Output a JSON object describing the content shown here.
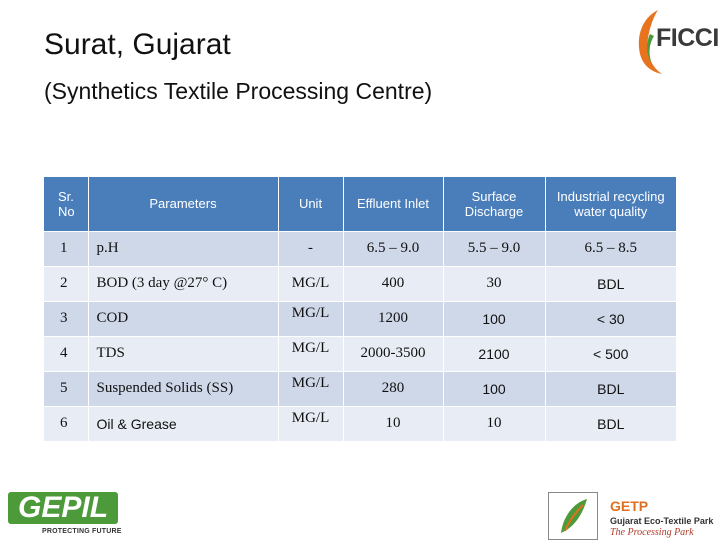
{
  "header": {
    "title": "Surat, Gujarat",
    "subtitle": "(Synthetics Textile Processing Centre)"
  },
  "logos": {
    "ficci": "FICCI",
    "gepil": {
      "name": "GEPIL",
      "tagline": "PROTECTING FUTURE"
    },
    "getp": {
      "name": "GETP",
      "full": "Gujarat Eco-Textile Park",
      "tagline": "The Processing Park"
    }
  },
  "table": {
    "headers": {
      "sr": "Sr. No",
      "parameters": "Parameters",
      "unit": "Unit",
      "effluent": "Effluent Inlet",
      "surface": "Surface Discharge",
      "industrial": "Industrial recycling water quality"
    },
    "rows": [
      {
        "sr": "1",
        "parameter": "p.H",
        "unit": "-",
        "effluent": "6.5 – 9.0",
        "surface": "5.5 – 9.0",
        "industrial": "6.5 – 8.5"
      },
      {
        "sr": "2",
        "parameter": "BOD (3 day @27° C)",
        "unit": "MG/L",
        "effluent": "400",
        "surface": "30",
        "industrial": "BDL"
      },
      {
        "sr": "3",
        "parameter": "COD",
        "unit": "MG/L",
        "effluent": "1200",
        "surface": "100",
        "industrial": "< 30"
      },
      {
        "sr": "4",
        "parameter": "TDS",
        "unit": "MG/L",
        "effluent": "2000-3500",
        "surface": "2100",
        "industrial": "< 500"
      },
      {
        "sr": "5",
        "parameter": "Suspended Solids (SS)",
        "unit": "MG/L",
        "effluent": "280",
        "surface": "100",
        "industrial": "BDL"
      },
      {
        "sr": "6",
        "parameter": "Oil & Grease",
        "unit": "MG/L",
        "effluent": "10",
        "surface": "10",
        "industrial": "BDL"
      }
    ]
  },
  "colors": {
    "header_bg": "#4a7ebb",
    "row_dark": "#cfd8e9",
    "row_light": "#e8edf5",
    "ficci_orange": "#e8731e",
    "gepil_green": "#4c9a3a"
  }
}
